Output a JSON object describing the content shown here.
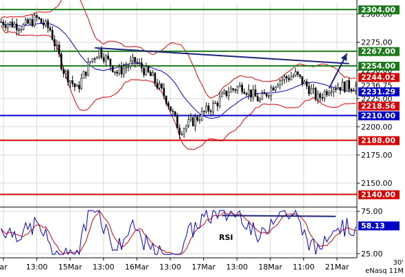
{
  "chart_data": [
    {
      "type": "candlestick",
      "panel": "price",
      "ylim": [
        2130,
        2310
      ],
      "y_ticks": [
        {
          "value": 2300,
          "label": "2300.00"
        },
        {
          "value": 2275,
          "label": "2275.00"
        },
        {
          "value": 2250,
          "label": "2250.00"
        },
        {
          "value": 2225,
          "label": "2225.00"
        },
        {
          "value": 2200,
          "label": "2200.00"
        },
        {
          "value": 2175,
          "label": "2175.00"
        },
        {
          "value": 2150,
          "label": "2150.00"
        }
      ],
      "x_ticks": [
        "ar",
        "13:00",
        "15Mar",
        "13:00",
        "16Mar",
        "13:00",
        "17Mar",
        "13:00",
        "18Mar",
        "11:00",
        "21Mar"
      ],
      "levels": [
        {
          "value": 2304,
          "label": "2304.00",
          "color": "#1a7a1a",
          "style": "line"
        },
        {
          "value": 2267,
          "label": "2267.00",
          "color": "#1a7a1a",
          "style": "line"
        },
        {
          "value": 2254,
          "label": "2254.00",
          "color": "#1a7a1a",
          "style": "line"
        },
        {
          "value": 2244.02,
          "label": "2244.02",
          "color": "#d60000",
          "style": "tag"
        },
        {
          "value": 2236.75,
          "label": "2236.75",
          "color": "#000000",
          "style": "text"
        },
        {
          "value": 2231.29,
          "label": "2231.29",
          "color": "#0000c8",
          "style": "tag"
        },
        {
          "value": 2218.56,
          "label": "2218.56",
          "color": "#d60000",
          "style": "tag"
        },
        {
          "value": 2210,
          "label": "2210.00",
          "color": "#0000c8",
          "style": "line"
        },
        {
          "value": 2188,
          "label": "2188.00",
          "color": "#d60000",
          "style": "line"
        },
        {
          "value": 2140,
          "label": "2140.00",
          "color": "#d60000",
          "style": "line"
        }
      ],
      "trendline": {
        "start": [
          42,
          2270
        ],
        "end": [
          156,
          2256
        ],
        "color": "#1a237e"
      },
      "forecast_arrow": {
        "start": [
          147,
          2234
        ],
        "end": [
          155,
          2265
        ],
        "color": "#1a237e"
      },
      "colors": {
        "candle": "#000000",
        "ma": "#0000c8",
        "band": "#d60000"
      }
    },
    {
      "type": "line",
      "panel": "rsi",
      "label": "RSI",
      "ylim": [
        20,
        80
      ],
      "y_ticks": [
        {
          "value": 75,
          "label": "75.00"
        },
        {
          "value": 25,
          "label": "25.00"
        }
      ],
      "current": {
        "value": 58.13,
        "label": "58.13"
      },
      "trendline": {
        "start": [
          99,
          70
        ],
        "end": [
          150,
          69
        ]
      },
      "colors": {
        "rsi": "#0000c8",
        "signal": "#d60000"
      }
    }
  ],
  "footer": {
    "interval": "30'",
    "source": "eNasq 11M"
  }
}
